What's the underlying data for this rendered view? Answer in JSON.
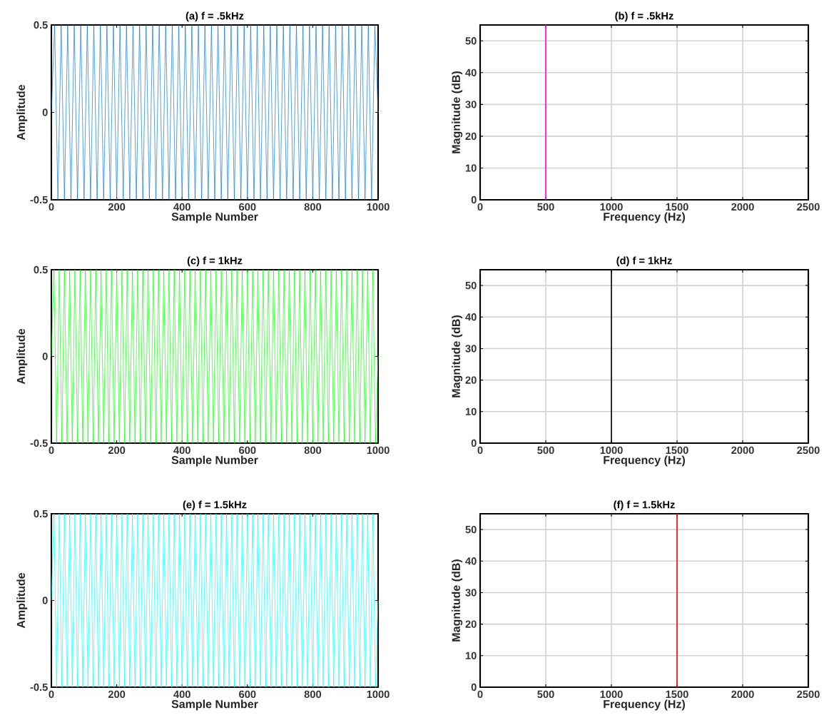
{
  "chart_data": [
    {
      "type": "line",
      "title": "(a) f = .5kHz",
      "xlabel": "Sample Number",
      "ylabel": "Amplitude",
      "xlim": [
        0,
        1000
      ],
      "xticks": [
        0,
        200,
        400,
        600,
        800,
        1000
      ],
      "ylim": [
        -0.5,
        0.5
      ],
      "yticks": [
        -0.5,
        0,
        0.5
      ],
      "grid": false,
      "series": [
        {
          "color": "#0072bd",
          "x": [
            0,
            10,
            20,
            30,
            40,
            50,
            60,
            70,
            80,
            90,
            100,
            110,
            120,
            130,
            140,
            150,
            160,
            170,
            180,
            190,
            200,
            210,
            220,
            230,
            240,
            250,
            260,
            270,
            280,
            290,
            300,
            310,
            320,
            330,
            340,
            350,
            360,
            370,
            380,
            390,
            400,
            410,
            420,
            430,
            440,
            450,
            460,
            470,
            480,
            490,
            500,
            510,
            520,
            530,
            540,
            550,
            560,
            570,
            580,
            590,
            600,
            610,
            620,
            630,
            640,
            650,
            660,
            670,
            680,
            690,
            700,
            710,
            720,
            730,
            740,
            750,
            760,
            770,
            780,
            790,
            800,
            810,
            820,
            830,
            840,
            850,
            860,
            870,
            880,
            890,
            900,
            910,
            920,
            930,
            940,
            950,
            960,
            970,
            980,
            990,
            1000
          ],
          "values": [
            0,
            0.5,
            -0.5,
            0.5,
            -0.5,
            0.5,
            -0.5,
            0.5,
            -0.5,
            0.5,
            -0.5,
            0.5,
            -0.5,
            0.5,
            -0.5,
            0.5,
            -0.5,
            0.5,
            -0.5,
            0.5,
            -0.5,
            0.5,
            -0.5,
            0.5,
            -0.5,
            0.5,
            -0.5,
            0.5,
            -0.5,
            0.5,
            -0.5,
            0.5,
            -0.5,
            0.5,
            -0.5,
            0.5,
            -0.5,
            0.5,
            -0.5,
            0.5,
            -0.5,
            0.5,
            -0.5,
            0.5,
            -0.5,
            0.5,
            -0.5,
            0.5,
            -0.5,
            0.5,
            -0.5,
            0.5,
            -0.5,
            0.5,
            -0.5,
            0.5,
            -0.5,
            0.5,
            -0.5,
            0.5,
            -0.5,
            0.5,
            -0.5,
            0.5,
            -0.5,
            0.5,
            -0.5,
            0.5,
            -0.5,
            0.5,
            -0.5,
            0.5,
            -0.5,
            0.5,
            -0.5,
            0.5,
            -0.5,
            0.5,
            -0.5,
            0.5,
            -0.5,
            0.5,
            -0.5,
            0.5,
            -0.5,
            0.5,
            -0.5,
            0.5,
            -0.5,
            0.5,
            -0.5,
            0.5,
            -0.5,
            0.5,
            -0.5,
            0.5,
            -0.5,
            0.5,
            -0.5,
            0.5,
            0
          ]
        }
      ]
    },
    {
      "type": "line",
      "title": "(b) f = .5kHz",
      "xlabel": "Frequency (Hz)",
      "ylabel": "Magnitude (dB)",
      "xlim": [
        0,
        2500
      ],
      "xticks": [
        0,
        500,
        1000,
        1500,
        2000,
        2500
      ],
      "ylim": [
        0,
        55
      ],
      "yticks": [
        0,
        10,
        20,
        30,
        40,
        50
      ],
      "grid": true,
      "series": [
        {
          "color": "#ff00ff",
          "x": [
            500,
            500
          ],
          "values": [
            0,
            55
          ]
        }
      ]
    },
    {
      "type": "line",
      "title": "(c) f = 1kHz",
      "xlabel": "Sample Number",
      "ylabel": "Amplitude",
      "xlim": [
        0,
        1000
      ],
      "xticks": [
        0,
        200,
        400,
        600,
        800,
        1000
      ],
      "ylim": [
        -0.5,
        0.5
      ],
      "yticks": [
        -0.5,
        0,
        0.5
      ],
      "grid": false,
      "series": [
        {
          "color": "#00ff00",
          "x": [
            0,
            8,
            16,
            24,
            32,
            40,
            48,
            56,
            64,
            72,
            80,
            88,
            96,
            104,
            112,
            120,
            128,
            136,
            144,
            152,
            160,
            168,
            176,
            184,
            192,
            200,
            208,
            216,
            224,
            232,
            240,
            248,
            256,
            264,
            272,
            280,
            288,
            296,
            304,
            312,
            320,
            328,
            336,
            344,
            352,
            360,
            368,
            376,
            384,
            392,
            400,
            408,
            416,
            424,
            432,
            440,
            448,
            456,
            464,
            472,
            480,
            488,
            496,
            504,
            512,
            520,
            528,
            536,
            544,
            552,
            560,
            568,
            576,
            584,
            592,
            600,
            608,
            616,
            624,
            632,
            640,
            648,
            656,
            664,
            672,
            680,
            688,
            696,
            704,
            712,
            720,
            728,
            736,
            744,
            752,
            760,
            768,
            776,
            784,
            792,
            800,
            808,
            816,
            824,
            832,
            840,
            848,
            856,
            864,
            872,
            880,
            888,
            896,
            904,
            912,
            920,
            928,
            936,
            944,
            952,
            960,
            968,
            976,
            984,
            992,
            1000
          ],
          "values": [
            0,
            0.5,
            -0.5,
            0.5,
            -0.5,
            0.5,
            -0.5,
            0.5,
            -0.5,
            0.5,
            -0.5,
            0.5,
            -0.5,
            0.5,
            -0.5,
            0.5,
            -0.5,
            0.5,
            -0.5,
            0.5,
            -0.5,
            0.5,
            -0.5,
            0.5,
            -0.5,
            0.5,
            -0.5,
            0.5,
            -0.5,
            0.5,
            -0.5,
            0.5,
            -0.5,
            0.5,
            -0.5,
            0.5,
            -0.5,
            0.5,
            -0.5,
            0.5,
            -0.5,
            0.5,
            -0.5,
            0.5,
            -0.5,
            0.5,
            -0.5,
            0.5,
            -0.5,
            0.5,
            -0.5,
            0.5,
            -0.5,
            0.5,
            -0.5,
            0.5,
            -0.5,
            0.5,
            -0.5,
            0.5,
            -0.5,
            0.5,
            -0.5,
            0.5,
            -0.5,
            0.5,
            -0.5,
            0.5,
            -0.5,
            0.5,
            -0.5,
            0.5,
            -0.5,
            0.5,
            -0.5,
            0.5,
            -0.5,
            0.5,
            -0.5,
            0.5,
            -0.5,
            0.5,
            -0.5,
            0.5,
            -0.5,
            0.5,
            -0.5,
            0.5,
            -0.5,
            0.5,
            -0.5,
            0.5,
            -0.5,
            0.5,
            -0.5,
            0.5,
            -0.5,
            0.5,
            -0.5,
            0.5,
            -0.5,
            0.5,
            -0.5,
            0.5,
            -0.5,
            0.5,
            -0.5,
            0.5,
            -0.5,
            0.5,
            -0.5,
            0.5,
            -0.5,
            0.5,
            -0.5,
            0.5,
            -0.5,
            0.5,
            -0.5,
            0.5,
            -0.5,
            0.5,
            -0.5,
            0.5,
            -0.5,
            0
          ]
        }
      ]
    },
    {
      "type": "line",
      "title": "(d) f = 1kHz",
      "xlabel": "Frequency (Hz)",
      "ylabel": "Magnitude (dB)",
      "xlim": [
        0,
        2500
      ],
      "xticks": [
        0,
        500,
        1000,
        1500,
        2000,
        2500
      ],
      "ylim": [
        0,
        55
      ],
      "yticks": [
        0,
        10,
        20,
        30,
        40,
        50
      ],
      "grid": true,
      "series": [
        {
          "color": "#000000",
          "x": [
            1000,
            1000
          ],
          "values": [
            0,
            55
          ]
        }
      ]
    },
    {
      "type": "line",
      "title": "(e) f = 1.5kHz",
      "xlabel": "Sample Number",
      "ylabel": "Amplitude",
      "xlim": [
        0,
        1000
      ],
      "xticks": [
        0,
        200,
        400,
        600,
        800,
        1000
      ],
      "ylim": [
        -0.5,
        0.5
      ],
      "yticks": [
        -0.5,
        0,
        0.5
      ],
      "grid": false,
      "series": [
        {
          "color": "#00ffff",
          "x": [
            0,
            8,
            16,
            24,
            32,
            40,
            48,
            56,
            64,
            72,
            80,
            88,
            96,
            104,
            112,
            120,
            128,
            136,
            144,
            152,
            160,
            168,
            176,
            184,
            192,
            200,
            208,
            216,
            224,
            232,
            240,
            248,
            256,
            264,
            272,
            280,
            288,
            296,
            304,
            312,
            320,
            328,
            336,
            344,
            352,
            360,
            368,
            376,
            384,
            392,
            400,
            408,
            416,
            424,
            432,
            440,
            448,
            456,
            464,
            472,
            480,
            488,
            496,
            504,
            512,
            520,
            528,
            536,
            544,
            552,
            560,
            568,
            576,
            584,
            592,
            600,
            608,
            616,
            624,
            632,
            640,
            648,
            656,
            664,
            672,
            680,
            688,
            696,
            704,
            712,
            720,
            728,
            736,
            744,
            752,
            760,
            768,
            776,
            784,
            792,
            800,
            808,
            816,
            824,
            832,
            840,
            848,
            856,
            864,
            872,
            880,
            888,
            896,
            904,
            912,
            920,
            928,
            936,
            944,
            952,
            960,
            968,
            976,
            984,
            992,
            1000
          ],
          "values": [
            0,
            0.5,
            -0.5,
            0.5,
            -0.5,
            0.5,
            -0.5,
            0.5,
            -0.5,
            0.5,
            -0.5,
            0.5,
            -0.5,
            0.5,
            -0.5,
            0.5,
            -0.5,
            0.5,
            -0.5,
            0.5,
            -0.5,
            0.5,
            -0.5,
            0.5,
            -0.5,
            0.5,
            -0.5,
            0.5,
            -0.5,
            0.5,
            -0.5,
            0.5,
            -0.5,
            0.5,
            -0.5,
            0.5,
            -0.5,
            0.5,
            -0.5,
            0.5,
            -0.5,
            0.5,
            -0.5,
            0.5,
            -0.5,
            0.5,
            -0.5,
            0.5,
            -0.5,
            0.5,
            -0.5,
            0.5,
            -0.5,
            0.5,
            -0.5,
            0.5,
            -0.5,
            0.5,
            -0.5,
            0.5,
            -0.5,
            0.5,
            -0.5,
            0.5,
            -0.5,
            0.5,
            -0.5,
            0.5,
            -0.5,
            0.5,
            -0.5,
            0.5,
            -0.5,
            0.5,
            -0.5,
            0.5,
            -0.5,
            0.5,
            -0.5,
            0.5,
            -0.5,
            0.5,
            -0.5,
            0.5,
            -0.5,
            0.5,
            -0.5,
            0.5,
            -0.5,
            0.5,
            -0.5,
            0.5,
            -0.5,
            0.5,
            -0.5,
            0.5,
            -0.5,
            0.5,
            -0.5,
            0.5,
            -0.5,
            0.5,
            -0.5,
            0.5,
            -0.5,
            0.5,
            -0.5,
            0.5,
            -0.5,
            0.5,
            -0.5,
            0.5,
            -0.5,
            0.5,
            -0.5,
            0.5,
            -0.5,
            0.5,
            -0.5,
            0.5,
            -0.5,
            0.5,
            -0.5,
            0.5,
            -0.5,
            0
          ]
        }
      ]
    },
    {
      "type": "line",
      "title": "(f) f = 1.5kHz",
      "xlabel": "Frequency (Hz)",
      "ylabel": "Magnitude (dB)",
      "xlim": [
        0,
        2500
      ],
      "xticks": [
        0,
        500,
        1000,
        1500,
        2000,
        2500
      ],
      "ylim": [
        0,
        55
      ],
      "yticks": [
        0,
        10,
        20,
        30,
        40,
        50
      ],
      "grid": true,
      "series": [
        {
          "color": "#ff0000",
          "x": [
            1500,
            1500
          ],
          "values": [
            0,
            55
          ]
        }
      ]
    }
  ]
}
